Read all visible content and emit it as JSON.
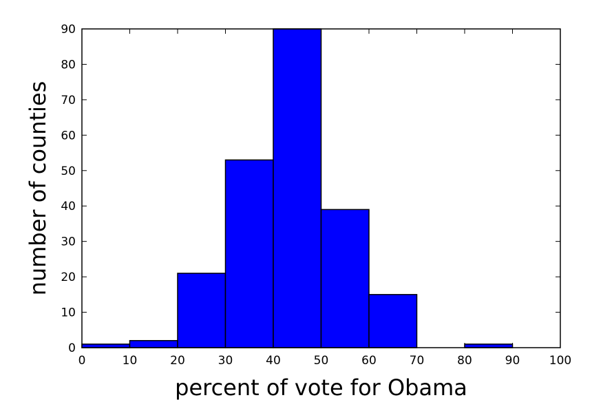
{
  "chart_data": {
    "type": "bar",
    "subtype": "histogram",
    "bins": [
      {
        "start": 0,
        "end": 10,
        "count": 1
      },
      {
        "start": 10,
        "end": 20,
        "count": 2
      },
      {
        "start": 20,
        "end": 30,
        "count": 21
      },
      {
        "start": 30,
        "end": 40,
        "count": 53
      },
      {
        "start": 40,
        "end": 50,
        "count": 90
      },
      {
        "start": 50,
        "end": 60,
        "count": 39
      },
      {
        "start": 60,
        "end": 70,
        "count": 15
      },
      {
        "start": 70,
        "end": 80,
        "count": 0
      },
      {
        "start": 80,
        "end": 90,
        "count": 1
      },
      {
        "start": 90,
        "end": 100,
        "count": 0
      }
    ],
    "xlabel": "percent of vote for Obama",
    "ylabel": "number of counties",
    "xlim": [
      0,
      100
    ],
    "ylim": [
      0,
      90
    ],
    "xticks": [
      0,
      10,
      20,
      30,
      40,
      50,
      60,
      70,
      80,
      90,
      100
    ],
    "yticks": [
      0,
      10,
      20,
      30,
      40,
      50,
      60,
      70,
      80,
      90
    ],
    "grid": false,
    "bar_color": "#0000ff",
    "edge_color": "#000000"
  }
}
